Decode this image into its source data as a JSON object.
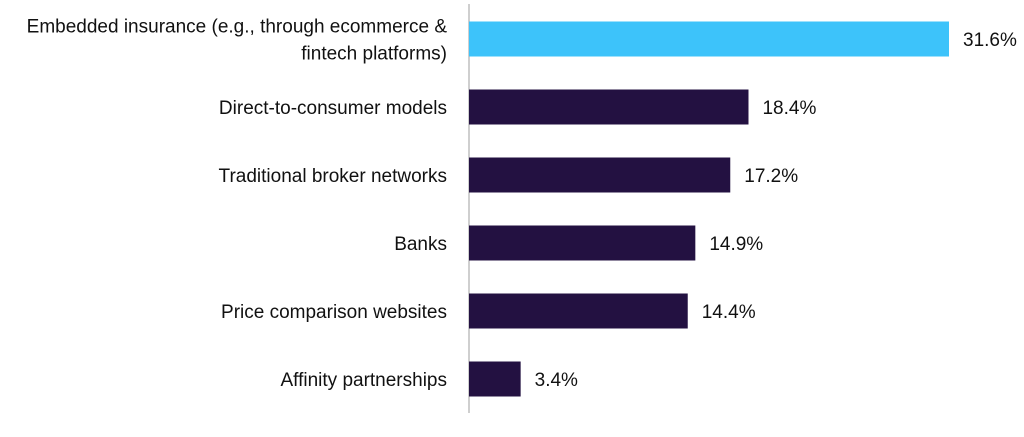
{
  "chart_data": {
    "type": "bar",
    "orientation": "horizontal",
    "categories": [
      "Embedded insurance (e.g., through ecommerce & fintech platforms)",
      "Direct-to-consumer models",
      "Traditional broker networks",
      "Banks",
      "Price comparison websites",
      "Affinity partnerships"
    ],
    "category_lines": [
      [
        "Embedded insurance (e.g., through ecommerce &",
        "fintech platforms)"
      ],
      [
        "Direct-to-consumer models"
      ],
      [
        "Traditional broker networks"
      ],
      [
        "Banks"
      ],
      [
        "Price comparison websites"
      ],
      [
        "Affinity partnerships"
      ]
    ],
    "values": [
      31.6,
      18.4,
      17.2,
      14.9,
      14.4,
      3.4
    ],
    "value_labels": [
      "31.6%",
      "18.4%",
      "17.2%",
      "14.9%",
      "14.4%",
      "3.4%"
    ],
    "unit": "%",
    "highlight_index": 0,
    "xlim": [
      0,
      31.6
    ],
    "title": "",
    "xlabel": "",
    "ylabel": "",
    "grid": false,
    "legend": "none",
    "colors": {
      "highlight": "#3DC3FA",
      "bar": "#231141",
      "axis": "#BFBFBF",
      "text": "#111111"
    }
  }
}
